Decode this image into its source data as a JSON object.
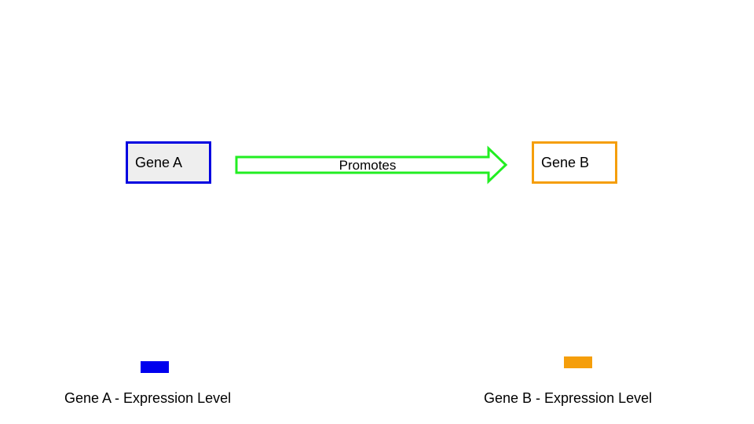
{
  "diagram": {
    "nodes": {
      "gene_a": {
        "label": "Gene A",
        "border_color": "#0000e0",
        "fill_color": "#eeeeee"
      },
      "gene_b": {
        "label": "Gene B",
        "border_color": "#f59e0b",
        "fill_color": "#ffffff"
      }
    },
    "edge": {
      "from": "Gene A",
      "to": "Gene B",
      "label": "Promotes",
      "color": "#22ee22"
    }
  },
  "legend": {
    "gene_a": {
      "label": "Gene A - Expression Level",
      "color": "#0000ee"
    },
    "gene_b": {
      "label": "Gene B - Expression Level",
      "color": "#f59e0b"
    }
  }
}
